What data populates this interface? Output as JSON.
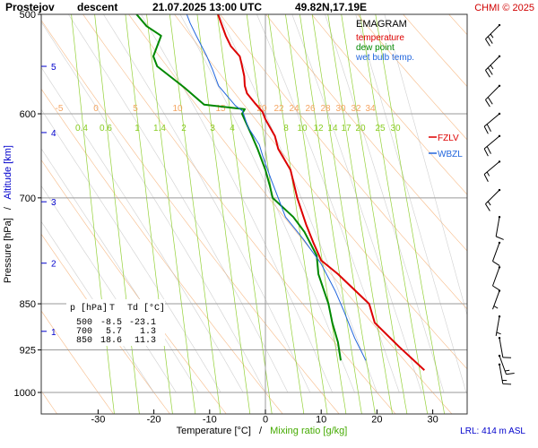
{
  "header": {
    "station": "Prostejov",
    "mode": "descent",
    "datetime": "21.07.2025 13:00 UTC",
    "coords": "49.82N,17.19E",
    "copyright": "CHMI © 2025"
  },
  "legend": {
    "title": "EMAGRAM",
    "items": [
      {
        "label": "temperature",
        "color": "#dd0000"
      },
      {
        "label": "dew point",
        "color": "#008800"
      },
      {
        "label": "wet bulb temp.",
        "color": "#2266dd"
      }
    ]
  },
  "levels": {
    "fzlv": {
      "label": "FZLV",
      "color": "#dd0000"
    },
    "wbzl": {
      "label": "WBZL",
      "color": "#2266dd"
    }
  },
  "axes": {
    "ylabel_pressure": "Pressure [hPa]",
    "ylabel_sep": "/",
    "ylabel_altitude": "Altitude [km]",
    "xlabel_temp": "Temperature [°C]",
    "xlabel_sep": "/",
    "xlabel_mix": "Mixing ratio [g/kg]",
    "lrl": "LRL: 414 m ASL"
  },
  "table": {
    "headers": [
      "p [hPa]",
      "T",
      "Td [°C]"
    ],
    "rows": [
      [
        "500",
        "-8.5",
        "-23.1"
      ],
      [
        "700",
        "5.7",
        "1.3"
      ],
      [
        "850",
        "18.6",
        "11.3"
      ]
    ]
  },
  "colors": {
    "grid": "#999999",
    "dry_adiabat": "#f4a460",
    "moist_adiabat": "#aaaaaa",
    "mixing_ratio": "#88cc22",
    "temperature": "#dd0000",
    "dewpoint": "#008800",
    "wetbulb": "#2266dd"
  },
  "chart_data": {
    "type": "line",
    "title": "EMAGRAM",
    "xlabel": "Temperature [°C] / Mixing ratio [g/kg]",
    "ylabel": "Pressure [hPa] / Altitude [km]",
    "yscale": "log",
    "ylim": [
      1000,
      500
    ],
    "pressure_ticks": [
      500,
      600,
      700,
      850,
      925,
      1000
    ],
    "temp_ticks": [
      -30,
      -20,
      -10,
      0,
      10,
      20,
      30
    ],
    "altitude_ticks_km": [
      {
        "km": "1",
        "p": 894
      },
      {
        "km": "2",
        "p": 789
      },
      {
        "km": "3",
        "p": 705
      },
      {
        "km": "4",
        "p": 621
      },
      {
        "km": "5",
        "p": 550
      }
    ],
    "dry_adiabat_labels": [
      "-5",
      "0",
      "5",
      "10",
      "15",
      "20",
      "22",
      "24",
      "26",
      "28",
      "30",
      "32",
      "34"
    ],
    "mixing_ratio_labels_600": [
      "0.4",
      "0.6",
      "1",
      "1.4",
      "2",
      "3",
      "4"
    ],
    "mixing_ratio_labels_700": [
      "8",
      "10",
      "12",
      "14",
      "17",
      "20",
      "25",
      "30"
    ],
    "series": [
      {
        "name": "temperature",
        "points": [
          [
            28.5,
            960
          ],
          [
            24,
            920
          ],
          [
            19.6,
            880
          ],
          [
            18.6,
            850
          ],
          [
            13,
            805
          ],
          [
            10,
            785
          ],
          [
            8.6,
            760
          ],
          [
            7.3,
            735
          ],
          [
            5.7,
            700
          ],
          [
            4.5,
            665
          ],
          [
            2.3,
            640
          ],
          [
            1.7,
            625
          ],
          [
            0,
            606
          ],
          [
            -0.5,
            598
          ],
          [
            -1.8,
            589
          ],
          [
            -3.3,
            578
          ],
          [
            -3.7,
            570
          ],
          [
            -3.8,
            560
          ],
          [
            -4.3,
            547
          ],
          [
            -4.6,
            540
          ],
          [
            -6.2,
            530
          ],
          [
            -7.1,
            520
          ],
          [
            -7.8,
            510
          ],
          [
            -8.5,
            500
          ]
        ]
      },
      {
        "name": "dew point",
        "points": [
          [
            13.5,
            943
          ],
          [
            13,
            912
          ],
          [
            12,
            880
          ],
          [
            11.3,
            850
          ],
          [
            9.5,
            805
          ],
          [
            9.2,
            778
          ],
          [
            7,
            745
          ],
          [
            5,
            725
          ],
          [
            1.3,
            700
          ],
          [
            0.8,
            685
          ],
          [
            0,
            665
          ],
          [
            -1.4,
            640
          ],
          [
            -2.4,
            625
          ],
          [
            -4.2,
            600
          ],
          [
            -3.7,
            595
          ],
          [
            -11,
            590
          ],
          [
            -14.5,
            572
          ],
          [
            -19.4,
            550
          ],
          [
            -20.1,
            540
          ],
          [
            -18.7,
            520
          ],
          [
            -21.3,
            511
          ],
          [
            -23.1,
            500
          ]
        ]
      },
      {
        "name": "wet bulb temp.",
        "points": [
          [
            18,
            943
          ],
          [
            16,
            905
          ],
          [
            14,
            860
          ],
          [
            12.5,
            830
          ],
          [
            10,
            790
          ],
          [
            6.8,
            755
          ],
          [
            3.6,
            725
          ],
          [
            2.3,
            700
          ],
          [
            1.1,
            678
          ],
          [
            -0.4,
            650
          ],
          [
            -1.1,
            635
          ],
          [
            -3.1,
            615
          ],
          [
            -4.1,
            597
          ],
          [
            -5.4,
            591
          ],
          [
            -8.4,
            570
          ],
          [
            -9.5,
            553
          ],
          [
            -10.5,
            540
          ],
          [
            -12.4,
            520
          ],
          [
            -13.5,
            508
          ],
          [
            -14.1,
            500
          ]
        ]
      }
    ],
    "wind_barbs": [
      {
        "p": 510,
        "dir": 225,
        "kt": 25
      },
      {
        "p": 540,
        "dir": 225,
        "kt": 25
      },
      {
        "p": 570,
        "dir": 225,
        "kt": 20
      },
      {
        "p": 600,
        "dir": 230,
        "kt": 20
      },
      {
        "p": 625,
        "dir": 230,
        "kt": 20
      },
      {
        "p": 655,
        "dir": 230,
        "kt": 15
      },
      {
        "p": 690,
        "dir": 225,
        "kt": 15
      },
      {
        "p": 725,
        "dir": 190,
        "kt": 10
      },
      {
        "p": 760,
        "dir": 200,
        "kt": 10
      },
      {
        "p": 795,
        "dir": 200,
        "kt": 10
      },
      {
        "p": 830,
        "dir": 200,
        "kt": 5
      },
      {
        "p": 870,
        "dir": 190,
        "kt": 5
      },
      {
        "p": 905,
        "dir": 170,
        "kt": 10
      },
      {
        "p": 935,
        "dir": 160,
        "kt": 15
      },
      {
        "p": 950,
        "dir": 170,
        "kt": 15
      }
    ]
  }
}
